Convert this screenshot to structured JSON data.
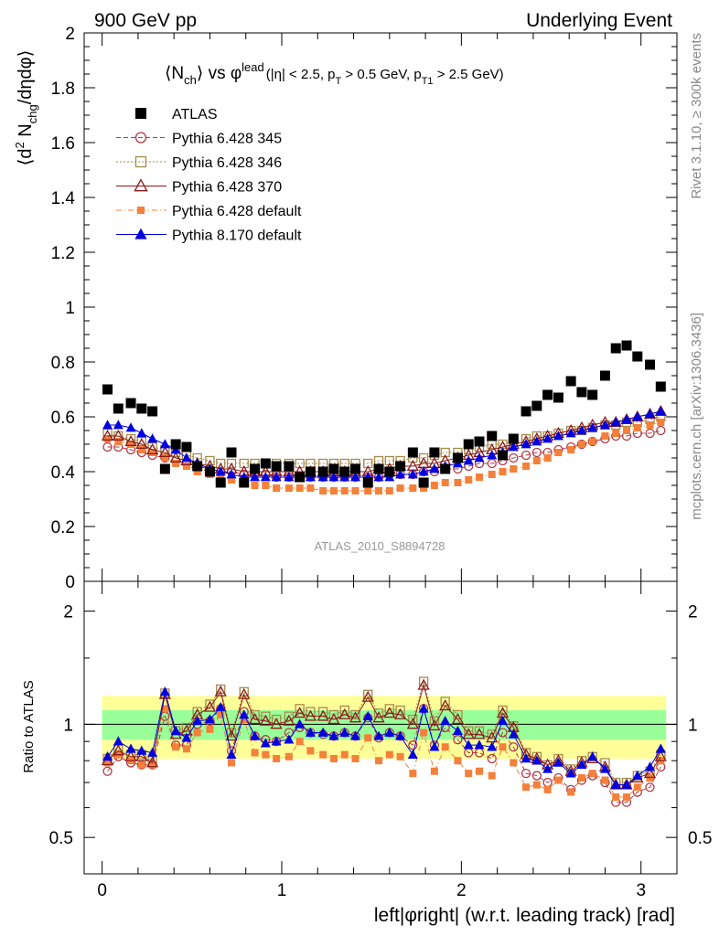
{
  "header": {
    "left": "900 GeV pp",
    "right": "Underlying Event"
  },
  "side_labels": {
    "rivet": "Rivet 3.1.10, ≥ 300k events",
    "mcplots": "mcplots.cern.ch [arXiv:1306.3436]"
  },
  "chart_data": [
    {
      "type": "scatter",
      "title_parts": {
        "n": "⟨N",
        "n_sub": "ch",
        "vs": "⟩ vs φ",
        "lead_sup": "lead",
        "cut1": "(|η| < 2.5, p",
        "cut1_sub": "T",
        "cut2": " > 0.5 GeV, p",
        "cut2_sub": "T1",
        "cut3": " > 2.5 GeV)"
      },
      "ylabel_parts": {
        "a": "⟨d",
        "a_sup": "2",
        "b": " N",
        "b_sub": "chg",
        "c": "/dηdφ⟩"
      },
      "watermark": "ATLAS_2010_S8894728",
      "ylim": [
        0,
        2
      ],
      "xlim": [
        -0.1,
        3.2
      ],
      "y_ticks": [
        "0",
        "0.2",
        "0.4",
        "0.6",
        "0.8",
        "1",
        "1.2",
        "1.4",
        "1.6",
        "1.8",
        "2"
      ],
      "legend_position": "top-left",
      "x": [
        0.03,
        0.09,
        0.16,
        0.22,
        0.28,
        0.35,
        0.41,
        0.47,
        0.53,
        0.6,
        0.66,
        0.72,
        0.79,
        0.85,
        0.91,
        0.97,
        1.04,
        1.1,
        1.16,
        1.23,
        1.29,
        1.35,
        1.41,
        1.48,
        1.54,
        1.6,
        1.66,
        1.73,
        1.79,
        1.85,
        1.91,
        1.98,
        2.04,
        2.1,
        2.17,
        2.23,
        2.29,
        2.36,
        2.42,
        2.48,
        2.54,
        2.61,
        2.67,
        2.73,
        2.8,
        2.86,
        2.92,
        2.98,
        3.05,
        3.11
      ],
      "series": [
        {
          "name": "ATLAS",
          "marker": "square-filled",
          "color": "#000000",
          "values": [
            0.7,
            0.63,
            0.65,
            0.63,
            0.62,
            0.41,
            0.5,
            0.49,
            0.42,
            0.4,
            0.36,
            0.47,
            0.36,
            0.41,
            0.43,
            0.42,
            0.42,
            0.38,
            0.4,
            0.4,
            0.41,
            0.4,
            0.41,
            0.36,
            0.41,
            0.4,
            0.42,
            0.47,
            0.36,
            0.47,
            0.41,
            0.45,
            0.5,
            0.51,
            0.53,
            0.46,
            0.52,
            0.62,
            0.64,
            0.68,
            0.67,
            0.73,
            0.69,
            0.68,
            0.75,
            0.85,
            0.86,
            0.82,
            0.79,
            0.71
          ]
        },
        {
          "name": "Pythia 6.428 345",
          "marker": "circle-open",
          "color": "#b03a48",
          "values": [
            0.49,
            0.49,
            0.48,
            0.47,
            0.46,
            0.45,
            0.44,
            0.43,
            0.42,
            0.41,
            0.4,
            0.4,
            0.39,
            0.39,
            0.39,
            0.38,
            0.38,
            0.38,
            0.38,
            0.38,
            0.38,
            0.38,
            0.38,
            0.38,
            0.38,
            0.39,
            0.39,
            0.39,
            0.4,
            0.4,
            0.41,
            0.41,
            0.42,
            0.43,
            0.43,
            0.44,
            0.45,
            0.46,
            0.47,
            0.47,
            0.48,
            0.49,
            0.5,
            0.51,
            0.52,
            0.53,
            0.53,
            0.54,
            0.54,
            0.55
          ]
        },
        {
          "name": "Pythia 6.428 346",
          "marker": "square-open",
          "color": "#a68a4a",
          "values": [
            0.54,
            0.53,
            0.52,
            0.51,
            0.49,
            0.48,
            0.47,
            0.46,
            0.45,
            0.44,
            0.43,
            0.43,
            0.43,
            0.43,
            0.43,
            0.43,
            0.43,
            0.43,
            0.43,
            0.43,
            0.43,
            0.43,
            0.43,
            0.43,
            0.44,
            0.44,
            0.44,
            0.45,
            0.45,
            0.46,
            0.47,
            0.47,
            0.48,
            0.49,
            0.5,
            0.5,
            0.51,
            0.52,
            0.53,
            0.53,
            0.54,
            0.55,
            0.55,
            0.56,
            0.57,
            0.57,
            0.58,
            0.58,
            0.59,
            0.6
          ]
        },
        {
          "name": "Pythia 6.428 370",
          "marker": "triangle-open",
          "color": "#8b1a1a",
          "values": [
            0.53,
            0.53,
            0.51,
            0.5,
            0.48,
            0.47,
            0.45,
            0.44,
            0.43,
            0.42,
            0.41,
            0.41,
            0.4,
            0.4,
            0.4,
            0.4,
            0.4,
            0.4,
            0.4,
            0.4,
            0.4,
            0.4,
            0.4,
            0.4,
            0.41,
            0.41,
            0.42,
            0.42,
            0.43,
            0.43,
            0.44,
            0.45,
            0.46,
            0.47,
            0.48,
            0.49,
            0.5,
            0.51,
            0.52,
            0.53,
            0.54,
            0.55,
            0.56,
            0.57,
            0.58,
            0.58,
            0.59,
            0.6,
            0.61,
            0.62
          ]
        },
        {
          "name": "Pythia 6.428 default",
          "marker": "square-filled",
          "color": "#f4803a",
          "values": [
            0.52,
            0.51,
            0.5,
            0.48,
            0.47,
            0.45,
            0.43,
            0.42,
            0.4,
            0.39,
            0.38,
            0.37,
            0.36,
            0.35,
            0.35,
            0.34,
            0.34,
            0.34,
            0.34,
            0.33,
            0.33,
            0.33,
            0.33,
            0.33,
            0.33,
            0.33,
            0.34,
            0.34,
            0.34,
            0.35,
            0.36,
            0.36,
            0.37,
            0.38,
            0.39,
            0.4,
            0.41,
            0.42,
            0.44,
            0.45,
            0.47,
            0.48,
            0.5,
            0.51,
            0.53,
            0.54,
            0.55,
            0.56,
            0.57,
            0.58
          ]
        },
        {
          "name": "Pythia 8.170 default",
          "marker": "triangle-filled",
          "color": "#0000e0",
          "values": [
            0.57,
            0.57,
            0.56,
            0.54,
            0.52,
            0.5,
            0.48,
            0.45,
            0.43,
            0.41,
            0.4,
            0.39,
            0.38,
            0.38,
            0.38,
            0.38,
            0.38,
            0.38,
            0.38,
            0.38,
            0.38,
            0.38,
            0.38,
            0.38,
            0.38,
            0.38,
            0.39,
            0.39,
            0.4,
            0.41,
            0.42,
            0.43,
            0.44,
            0.45,
            0.46,
            0.47,
            0.49,
            0.5,
            0.51,
            0.52,
            0.53,
            0.54,
            0.55,
            0.56,
            0.57,
            0.58,
            0.59,
            0.6,
            0.61,
            0.62
          ]
        }
      ]
    },
    {
      "type": "scatter",
      "ylabel": "Ratio to ATLAS",
      "xlabel": "left|φright| (w.r.t. leading track) [rad]",
      "log_y": true,
      "ylim": [
        0.4,
        2.4
      ],
      "y_ticks": [
        "0.5",
        "1",
        "2"
      ],
      "x_ticks": [
        "0",
        "1",
        "2",
        "3"
      ],
      "reference_line": 1,
      "band_inner_halfwidth": 0.09,
      "band_outer_halfwidth": 0.19,
      "x": [
        0.03,
        0.09,
        0.16,
        0.22,
        0.28,
        0.35,
        0.41,
        0.47,
        0.53,
        0.6,
        0.66,
        0.72,
        0.79,
        0.85,
        0.91,
        0.97,
        1.04,
        1.1,
        1.16,
        1.23,
        1.29,
        1.35,
        1.41,
        1.48,
        1.54,
        1.6,
        1.66,
        1.73,
        1.79,
        1.85,
        1.91,
        1.98,
        2.04,
        2.1,
        2.17,
        2.23,
        2.29,
        2.36,
        2.42,
        2.48,
        2.54,
        2.61,
        2.67,
        2.73,
        2.8,
        2.86,
        2.92,
        2.98,
        3.05,
        3.11
      ],
      "series": [
        {
          "name": "Pythia 6.428 345",
          "values": [
            0.75,
            0.82,
            0.79,
            0.78,
            0.78,
            1.05,
            0.88,
            0.88,
            1.0,
            1.02,
            1.1,
            0.85,
            1.08,
            0.93,
            0.91,
            0.9,
            0.95,
            0.98,
            0.95,
            0.94,
            0.93,
            0.95,
            0.93,
            1.04,
            0.92,
            0.95,
            0.93,
            0.88,
            1.1,
            0.88,
            0.98,
            0.91,
            0.84,
            0.84,
            0.81,
            0.95,
            0.87,
            0.74,
            0.73,
            0.7,
            0.72,
            0.67,
            0.71,
            0.73,
            0.7,
            0.62,
            0.62,
            0.66,
            0.68,
            0.77
          ]
        },
        {
          "name": "Pythia 6.428 346",
          "values": [
            0.81,
            0.86,
            0.83,
            0.83,
            0.8,
            1.21,
            0.96,
            0.98,
            1.08,
            1.13,
            1.24,
            0.95,
            1.22,
            1.06,
            1.05,
            1.03,
            1.05,
            1.1,
            1.08,
            1.08,
            1.06,
            1.09,
            1.06,
            1.2,
            1.07,
            1.1,
            1.09,
            1.03,
            1.3,
            1.02,
            1.15,
            1.06,
            0.96,
            0.96,
            0.94,
            1.09,
            0.99,
            0.84,
            0.82,
            0.78,
            0.81,
            0.76,
            0.8,
            0.82,
            0.79,
            0.7,
            0.7,
            0.73,
            0.75,
            0.83
          ]
        },
        {
          "name": "Pythia 6.428 370",
          "values": [
            0.8,
            0.85,
            0.82,
            0.82,
            0.79,
            1.2,
            0.94,
            0.96,
            1.06,
            1.11,
            1.22,
            0.93,
            1.2,
            1.03,
            1.02,
            1.0,
            1.02,
            1.07,
            1.05,
            1.05,
            1.03,
            1.06,
            1.04,
            1.18,
            1.04,
            1.07,
            1.06,
            1.0,
            1.27,
            0.99,
            1.12,
            1.03,
            0.94,
            0.94,
            0.92,
            1.07,
            0.98,
            0.83,
            0.81,
            0.78,
            0.8,
            0.75,
            0.79,
            0.81,
            0.77,
            0.69,
            0.69,
            0.72,
            0.74,
            0.82
          ]
        },
        {
          "name": "Pythia 6.428 default",
          "values": [
            0.79,
            0.83,
            0.8,
            0.78,
            0.78,
            1.1,
            0.87,
            0.86,
            0.95,
            0.97,
            1.06,
            0.79,
            1.03,
            0.84,
            0.83,
            0.81,
            0.82,
            0.9,
            0.85,
            0.83,
            0.81,
            0.83,
            0.81,
            0.92,
            0.8,
            0.83,
            0.82,
            0.74,
            0.95,
            0.75,
            0.87,
            0.8,
            0.74,
            0.75,
            0.73,
            0.87,
            0.79,
            0.68,
            0.69,
            0.67,
            0.71,
            0.66,
            0.72,
            0.74,
            0.71,
            0.64,
            0.64,
            0.68,
            0.72,
            0.8
          ]
        },
        {
          "name": "Pythia 8.170 default",
          "values": [
            0.82,
            0.9,
            0.86,
            0.85,
            0.84,
            1.22,
            0.96,
            0.92,
            1.02,
            1.03,
            1.11,
            0.83,
            1.06,
            0.93,
            0.89,
            0.9,
            0.91,
            1.0,
            0.95,
            0.95,
            0.93,
            0.95,
            0.93,
            1.05,
            0.93,
            0.95,
            0.93,
            0.83,
            1.1,
            0.87,
            1.02,
            0.96,
            0.88,
            0.88,
            0.87,
            1.02,
            0.94,
            0.81,
            0.8,
            0.76,
            0.79,
            0.74,
            0.78,
            0.82,
            0.76,
            0.69,
            0.69,
            0.73,
            0.77,
            0.86
          ]
        }
      ]
    }
  ]
}
